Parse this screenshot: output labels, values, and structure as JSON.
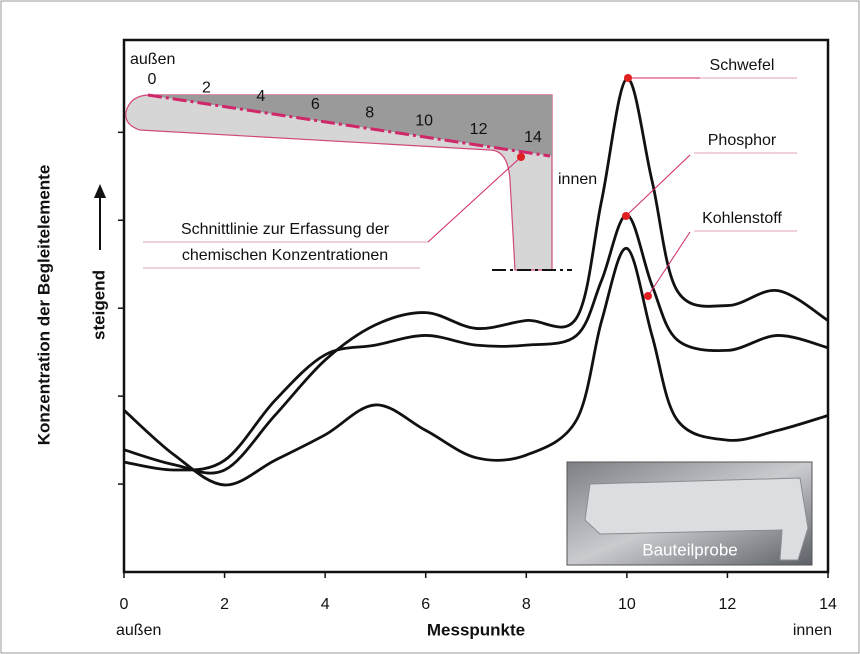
{
  "chart_data": {
    "type": "line",
    "ylabel": "Konzentration der Begleitelemente",
    "ylabel_secondary": "steigend",
    "xlabel": "Messpunkte",
    "xlabel_left": "außen",
    "xlabel_right": "innen",
    "x": [
      0,
      1,
      2,
      3,
      4,
      5,
      6,
      7,
      8,
      9,
      9.5,
      10,
      10.5,
      11,
      12,
      13,
      14
    ],
    "xlim": [
      0,
      14
    ],
    "xticks": [
      0,
      2,
      4,
      6,
      8,
      10,
      12,
      14
    ],
    "ylim": [
      0,
      6.05
    ],
    "yticks": [
      1,
      2,
      3,
      4,
      5
    ],
    "series": [
      {
        "name": "Schwefel",
        "color": "#111111",
        "values": [
          1.39,
          1.22,
          1.16,
          1.78,
          2.41,
          2.81,
          2.95,
          2.77,
          2.86,
          2.89,
          4.23,
          5.61,
          4.45,
          3.2,
          3.03,
          3.2,
          2.86
        ]
      },
      {
        "name": "Phosphor",
        "color": "#111111",
        "values": [
          1.25,
          1.16,
          1.27,
          1.95,
          2.47,
          2.58,
          2.69,
          2.58,
          2.58,
          2.69,
          3.32,
          4.06,
          3.26,
          2.64,
          2.52,
          2.69,
          2.55
        ]
      },
      {
        "name": "Kohlenstoff",
        "color": "#111111",
        "values": [
          1.84,
          1.33,
          0.99,
          1.27,
          1.56,
          1.9,
          1.61,
          1.3,
          1.33,
          1.73,
          2.86,
          3.68,
          2.69,
          1.73,
          1.5,
          1.61,
          1.78
        ]
      }
    ],
    "annotations": {
      "inset_outer": "außen",
      "inset_inner": "innen",
      "inset_points": [
        0,
        2,
        4,
        6,
        8,
        10,
        12,
        14
      ],
      "inset_caption": [
        "Schnittlinie zur Erfassung der",
        "chemischen Konzentrationen"
      ],
      "photo_label": "Bauteilprobe"
    }
  }
}
